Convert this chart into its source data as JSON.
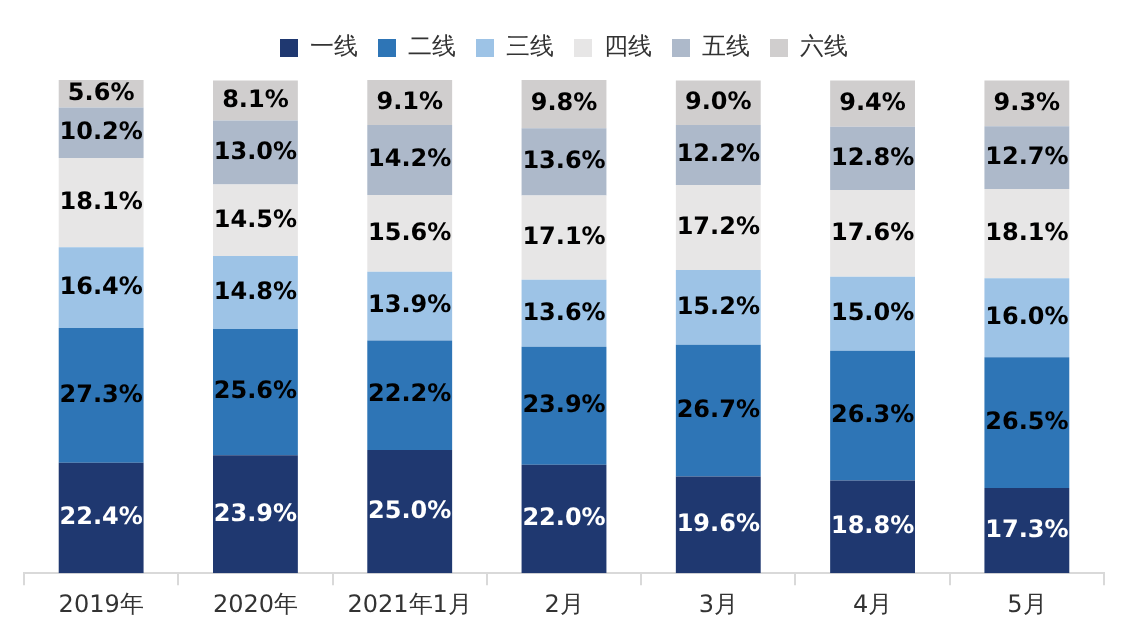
{
  "chart_data": {
    "type": "bar",
    "stacked": true,
    "legend": "top",
    "categories": [
      "2019年",
      "2020年",
      "2021年1月",
      "2月",
      "3月",
      "4月",
      "5月"
    ],
    "series": [
      {
        "name": "一线",
        "color": "#1f3870",
        "values": [
          22.4,
          23.9,
          25.0,
          22.0,
          19.6,
          18.8,
          17.3
        ],
        "value_labels": [
          "22.4%",
          "23.9%",
          "25.0%",
          "22.0%",
          "19.6%",
          "18.8%",
          "17.3%"
        ]
      },
      {
        "name": "二线",
        "color": "#2e75b6",
        "values": [
          27.3,
          25.6,
          22.2,
          23.9,
          26.7,
          26.3,
          26.5
        ],
        "value_labels": [
          "27.3%",
          "25.6%",
          "22.2%",
          "23.9%",
          "26.7%",
          "26.3%",
          "26.5%"
        ]
      },
      {
        "name": "三线",
        "color": "#9dc3e6",
        "values": [
          16.4,
          14.8,
          13.9,
          13.6,
          15.2,
          15.0,
          16.0
        ],
        "value_labels": [
          "16.4%",
          "14.8%",
          "13.9%",
          "13.6%",
          "15.2%",
          "15.0%",
          "16.0%"
        ]
      },
      {
        "name": "四线",
        "color": "#e7e6e6",
        "values": [
          18.1,
          14.5,
          15.6,
          17.1,
          17.2,
          17.6,
          18.1
        ],
        "value_labels": [
          "18.1%",
          "14.5%",
          "15.6%",
          "17.1%",
          "17.2%",
          "17.6%",
          "18.1%"
        ]
      },
      {
        "name": "五线",
        "color": "#adb9ca",
        "values": [
          10.2,
          13.0,
          14.2,
          13.6,
          12.2,
          12.8,
          12.7
        ],
        "value_labels": [
          "10.2%",
          "13.0%",
          "14.2%",
          "13.6%",
          "12.2%",
          "12.8%",
          "12.7%"
        ]
      },
      {
        "name": "六线",
        "color": "#d0cece",
        "values": [
          5.6,
          8.1,
          9.1,
          9.8,
          9.0,
          9.4,
          9.3
        ],
        "value_labels": [
          "5.6%",
          "8.1%",
          "9.1%",
          "9.8%",
          "9.0%",
          "9.4%",
          "9.3%"
        ]
      }
    ]
  }
}
